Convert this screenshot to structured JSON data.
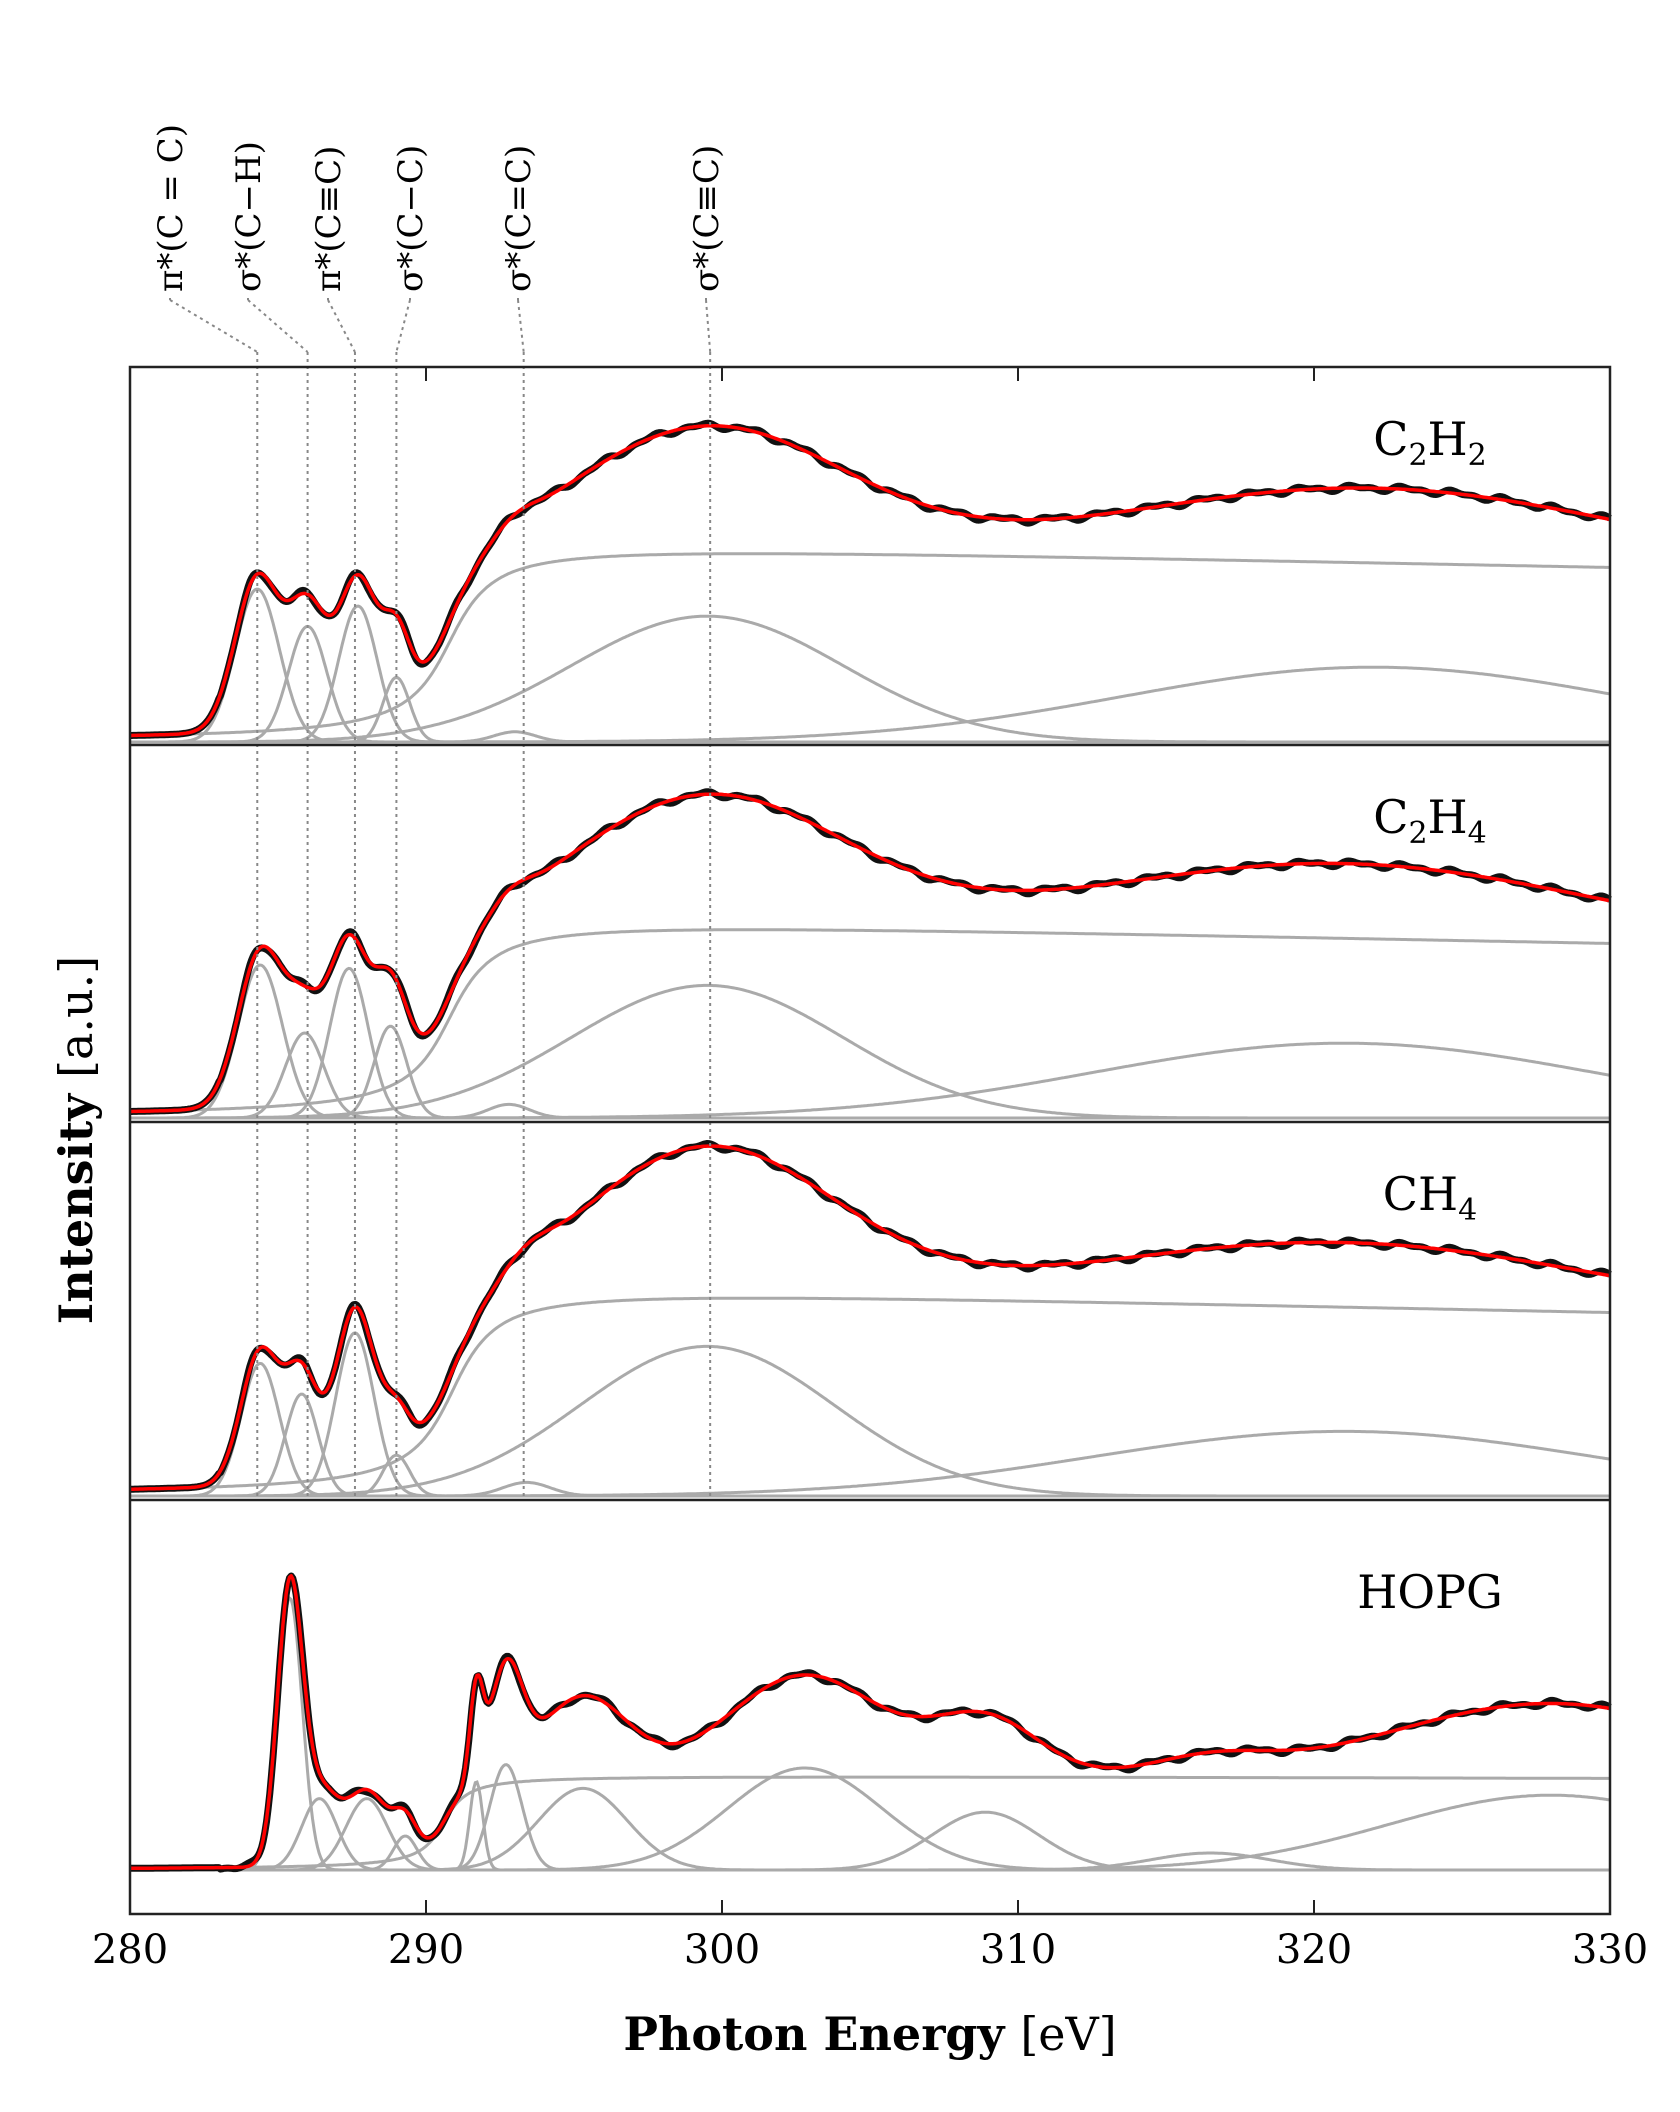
{
  "chart_data": {
    "type": "line",
    "xlabel_bold": "Photon Energy",
    "xlabel_unit": "[eV]",
    "ylabel_bold": "Intensity",
    "ylabel_unit": "[a.u.]",
    "xlim": [
      280,
      330
    ],
    "x_ticks": [
      "280",
      "290",
      "300",
      "310",
      "320",
      "330"
    ],
    "peak_assignments": [
      {
        "label": "π*(C = C)",
        "energy": 284.3
      },
      {
        "label": "σ*(C−H)",
        "energy": 286.0
      },
      {
        "label": "π*(C≡C)",
        "energy": 287.6
      },
      {
        "label": "σ*(C−C)",
        "energy": 289.0
      },
      {
        "label": "σ*(C=C)",
        "energy": 293.3
      },
      {
        "label": "σ*(C≡C)",
        "energy": 299.6
      }
    ],
    "panels": [
      {
        "label": "C2H2",
        "label_main": "C",
        "label_sub1": "2",
        "label_mid": "H",
        "label_sub2": "2",
        "series": [
          {
            "name": "data",
            "color": "#111111"
          },
          {
            "name": "fit",
            "color": "#ff0000"
          },
          {
            "name": "components",
            "color": "#aaaaaa"
          }
        ],
        "step": {
          "height": 0.59,
          "center": 290.8,
          "width": 1.1,
          "decay": 0.0035
        },
        "peaks": [
          {
            "center": 284.3,
            "height": 0.45,
            "width": 0.75
          },
          {
            "center": 286.0,
            "height": 0.34,
            "width": 0.65
          },
          {
            "center": 287.7,
            "height": 0.4,
            "width": 0.65
          },
          {
            "center": 289.0,
            "height": 0.19,
            "width": 0.45
          },
          {
            "center": 293.0,
            "height": 0.03,
            "width": 0.7
          },
          {
            "center": 299.5,
            "height": 0.37,
            "width": 4.6
          },
          {
            "center": 322.0,
            "height": 0.22,
            "width": 8.5
          }
        ]
      },
      {
        "label": "C2H4",
        "label_main": "C",
        "label_sub1": "2",
        "label_mid": "H",
        "label_sub2": "4",
        "series": [
          {
            "name": "data",
            "color": "#111111"
          },
          {
            "name": "fit",
            "color": "#ff0000"
          },
          {
            "name": "components",
            "color": "#aaaaaa"
          }
        ],
        "step": {
          "height": 0.59,
          "center": 290.8,
          "width": 1.1,
          "decay": 0.0035
        },
        "peaks": [
          {
            "center": 284.4,
            "height": 0.45,
            "width": 0.75
          },
          {
            "center": 285.9,
            "height": 0.25,
            "width": 0.65
          },
          {
            "center": 287.4,
            "height": 0.44,
            "width": 0.65
          },
          {
            "center": 288.8,
            "height": 0.27,
            "width": 0.55
          },
          {
            "center": 292.8,
            "height": 0.04,
            "width": 0.7
          },
          {
            "center": 299.5,
            "height": 0.39,
            "width": 4.6
          },
          {
            "center": 321.0,
            "height": 0.22,
            "width": 8.5
          }
        ]
      },
      {
        "label": "CH4",
        "label_main": "CH",
        "label_sub1": "4",
        "label_mid": "",
        "label_sub2": "",
        "series": [
          {
            "name": "data",
            "color": "#111111"
          },
          {
            "name": "fit",
            "color": "#ff0000"
          },
          {
            "name": "components",
            "color": "#aaaaaa"
          }
        ],
        "step": {
          "height": 0.62,
          "center": 290.9,
          "width": 1.1,
          "decay": 0.0035
        },
        "peaks": [
          {
            "center": 284.4,
            "height": 0.39,
            "width": 0.65
          },
          {
            "center": 285.8,
            "height": 0.3,
            "width": 0.55
          },
          {
            "center": 287.6,
            "height": 0.48,
            "width": 0.65
          },
          {
            "center": 289.0,
            "height": 0.12,
            "width": 0.45
          },
          {
            "center": 293.4,
            "height": 0.04,
            "width": 0.8
          },
          {
            "center": 299.5,
            "height": 0.44,
            "width": 4.3
          },
          {
            "center": 321.0,
            "height": 0.19,
            "width": 8.5
          }
        ]
      },
      {
        "label": "HOPG",
        "label_main": "HOPG",
        "label_sub1": "",
        "label_mid": "",
        "label_sub2": "",
        "series": [
          {
            "name": "data",
            "color": "#111111"
          },
          {
            "name": "fit",
            "color": "#ff0000"
          },
          {
            "name": "components",
            "color": "#aaaaaa"
          }
        ],
        "step": {
          "height": 0.28,
          "center": 290.6,
          "width": 0.6,
          "decay": 0.0009
        },
        "peaks": [
          {
            "center": 285.4,
            "height": 0.8,
            "width": 0.42
          },
          {
            "center": 286.4,
            "height": 0.21,
            "width": 0.6
          },
          {
            "center": 288.0,
            "height": 0.21,
            "width": 0.7
          },
          {
            "center": 289.3,
            "height": 0.1,
            "width": 0.4
          },
          {
            "center": 291.7,
            "height": 0.26,
            "width": 0.22
          },
          {
            "center": 292.7,
            "height": 0.31,
            "width": 0.55
          },
          {
            "center": 295.3,
            "height": 0.24,
            "width": 1.5
          },
          {
            "center": 302.8,
            "height": 0.3,
            "width": 2.6
          },
          {
            "center": 308.9,
            "height": 0.17,
            "width": 1.8
          },
          {
            "center": 316.5,
            "height": 0.05,
            "width": 2.0
          },
          {
            "center": 328.0,
            "height": 0.22,
            "width": 5.5
          }
        ]
      }
    ]
  }
}
